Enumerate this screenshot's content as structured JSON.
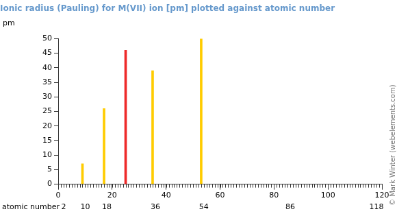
{
  "chart_data": {
    "type": "bar",
    "title": "Ionic radius (Pauling) for M(VII) ion [pm] plotted against atomic number",
    "ylabel": "pm",
    "xlabel": "atomic number",
    "x": [
      9,
      17,
      25,
      35,
      53
    ],
    "values": [
      7,
      26,
      46,
      39,
      50
    ],
    "colors": [
      "#ffcc00",
      "#ffcc00",
      "#ee2a2a",
      "#ffcc00",
      "#ffcc00"
    ],
    "xlim": [
      0,
      120
    ],
    "xticks": [
      0,
      20,
      40,
      60,
      80,
      100,
      120
    ],
    "x2lim": [
      0,
      120
    ],
    "x2ticks": [
      2,
      10,
      18,
      36,
      54,
      86,
      118
    ],
    "ylim": [
      0,
      50
    ],
    "yticks": [
      0,
      5,
      10,
      15,
      20,
      25,
      30,
      35,
      40,
      45,
      50
    ],
    "grid": false,
    "annotation": "© Mark Winter (webelements.com)"
  }
}
